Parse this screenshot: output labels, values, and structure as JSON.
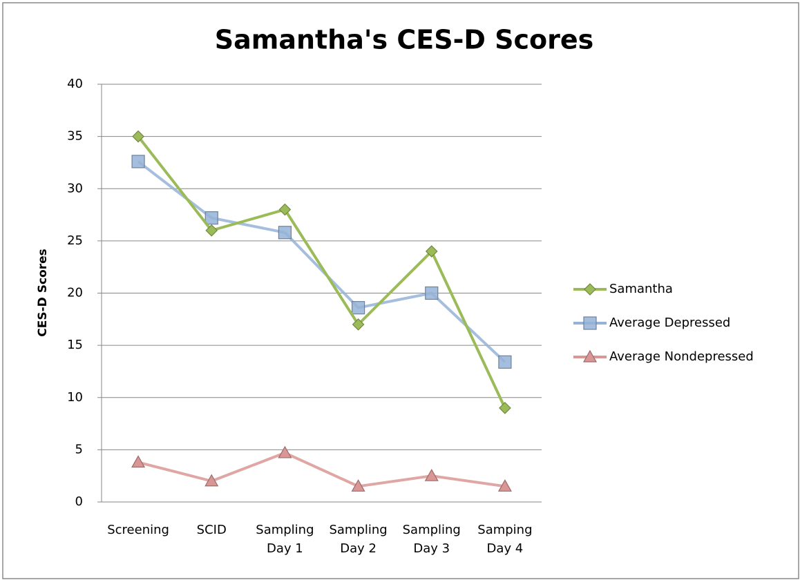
{
  "chart_data": {
    "type": "line",
    "title": "Samantha's CES-D Scores",
    "y_label": "CES-D Scores",
    "categories": [
      "Screening",
      "SCID",
      "Sampling Day 1",
      "Sampling Day 2",
      "Sampling Day 3",
      "Samping Day 4"
    ],
    "series": [
      {
        "name": "Samantha",
        "color": "#9bbb59",
        "marker": "diamond",
        "values": [
          35,
          26,
          28,
          17,
          24,
          9
        ]
      },
      {
        "name": "Average Depressed",
        "color": "#95b3d7",
        "marker": "square",
        "values": [
          32.6,
          27.2,
          25.8,
          18.6,
          20,
          13.4
        ]
      },
      {
        "name": "Average Nondepressed",
        "color": "#d99694",
        "marker": "triangle",
        "values": [
          3.8,
          2,
          4.7,
          1.5,
          2.5,
          1.5
        ]
      }
    ],
    "ylim": [
      0,
      40
    ],
    "yticks": [
      0,
      5,
      10,
      15,
      20,
      25,
      30,
      35,
      40
    ],
    "grid": true,
    "legend": "right"
  }
}
